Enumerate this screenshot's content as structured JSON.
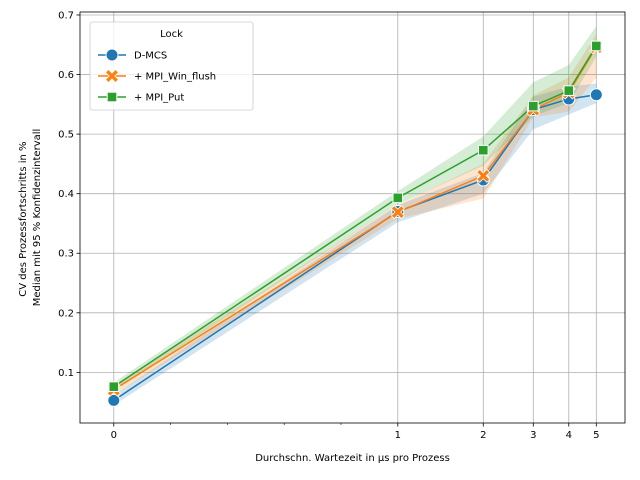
{
  "chart_data": {
    "type": "line",
    "title": "",
    "xlabel": "Durchschn. Wartezeit in µs pro Prozess",
    "ylabel_lines": [
      "CV des Prozessfortschritts in %",
      "Median mit 95 % Konfidenzintervall"
    ],
    "x_scale": "symlog",
    "x": [
      0,
      1,
      2,
      3,
      4,
      5
    ],
    "x_tick_labels": [
      "0",
      "1",
      "2",
      "3",
      "4",
      "5"
    ],
    "ylim": [
      0.015,
      0.705
    ],
    "y_ticks": [
      0.1,
      0.2,
      0.3,
      0.4,
      0.5,
      0.6,
      0.7
    ],
    "y_tick_labels": [
      "0.1",
      "0.2",
      "0.3",
      "0.4",
      "0.5",
      "0.6",
      "0.7"
    ],
    "grid": true,
    "legend": {
      "title": "Lock",
      "position": "top-left"
    },
    "series": [
      {
        "name": "D-MCS",
        "color": "#1f77b4",
        "marker": "circle",
        "values": [
          0.053,
          0.37,
          0.423,
          0.541,
          0.559,
          0.566
        ],
        "ci_low": [
          0.045,
          0.352,
          0.4,
          0.508,
          0.533,
          0.552
        ],
        "ci_high": [
          0.062,
          0.381,
          0.435,
          0.563,
          0.58,
          0.585
        ]
      },
      {
        "name": "+ MPI_Win_flush",
        "color": "#ff7f0e",
        "marker": "x",
        "values": [
          0.071,
          0.369,
          0.43,
          0.541,
          0.57,
          0.646
        ],
        "ci_low": [
          0.062,
          0.358,
          0.392,
          0.528,
          0.538,
          0.595
        ],
        "ci_high": [
          0.078,
          0.381,
          0.45,
          0.565,
          0.595,
          0.668
        ]
      },
      {
        "name": "+ MPI_Put",
        "color": "#2ca02c",
        "marker": "square",
        "values": [
          0.076,
          0.393,
          0.473,
          0.547,
          0.573,
          0.648
        ],
        "ci_low": [
          0.068,
          0.382,
          0.447,
          0.53,
          0.552,
          0.63
        ],
        "ci_high": [
          0.083,
          0.404,
          0.496,
          0.587,
          0.616,
          0.681
        ]
      }
    ]
  }
}
